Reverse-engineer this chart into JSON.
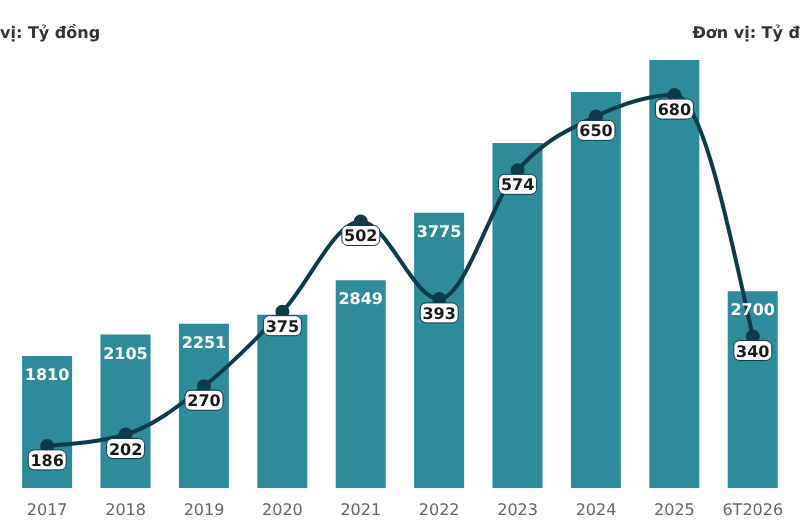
{
  "chart_data": {
    "type": "bar",
    "ylabel": "vị: Tỷ đồng",
    "y2label": "Đơn vị: Tỷ đ",
    "categories": [
      "2017",
      "2018",
      "2019",
      "2020",
      "2021",
      "2022",
      "2023",
      "2024",
      "2025",
      "6T2026"
    ],
    "series": [
      {
        "color": "#2e8b9a",
        "values": [
          1810,
          2105,
          2251,
          2375,
          2849,
          3775,
          4730,
          5430,
          5870,
          2700
        ],
        "value_labels": [
          "1810",
          "2105",
          "2251",
          null,
          "2849",
          "3775",
          null,
          null,
          null,
          "2700"
        ]
      },
      {
        "type": "line",
        "axis": "y2",
        "color": "#0d3b4a",
        "values": [
          186,
          202,
          270,
          375,
          502,
          393,
          574,
          650,
          680,
          340
        ],
        "value_labels": [
          "186",
          "202",
          "270",
          "375",
          "502",
          "393",
          "574",
          "650",
          "680",
          "340"
        ]
      }
    ],
    "marker": "circle",
    "line_style": "solid",
    "grid": false,
    "legend": false
  }
}
